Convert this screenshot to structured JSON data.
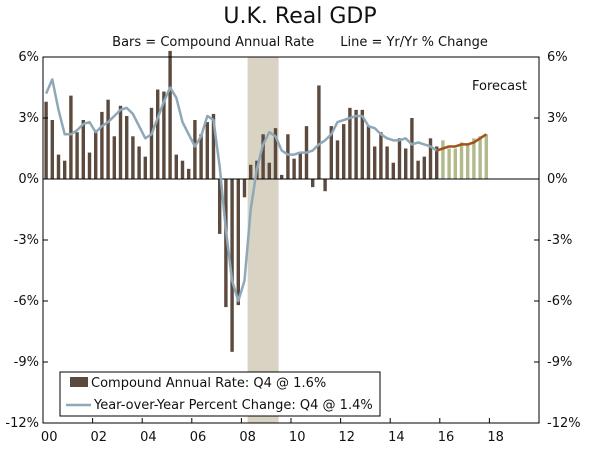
{
  "chart_data": {
    "type": "bar+line",
    "title": "U.K. Real GDP",
    "subtitle_bars": "Bars = Compound Annual Rate",
    "subtitle_line": "Line = Yr/Yr % Change",
    "annotation": "Forecast",
    "y_ticks": [
      "6%",
      "3%",
      "0%",
      "-3%",
      "-6%",
      "-9%",
      "-12%"
    ],
    "y_tick_values": [
      6,
      3,
      0,
      -3,
      -6,
      -9,
      -12
    ],
    "ylim": [
      -12,
      6
    ],
    "x_ticks": [
      "00",
      "02",
      "04",
      "06",
      "08",
      "10",
      "12",
      "14",
      "16",
      "18"
    ],
    "x_tick_years": [
      2000,
      2002,
      2004,
      2006,
      2008,
      2010,
      2012,
      2014,
      2016,
      2018
    ],
    "xlim": [
      2000,
      2020
    ],
    "recession": [
      2008.25,
      2009.5
    ],
    "legend": {
      "bars": "Compound Annual Rate: Q4 @ 1.6%",
      "line": "Year-over-Year Percent Change: Q4 @ 1.4%",
      "position": "bottom-left"
    },
    "colors": {
      "bar": "#5b4a3d",
      "bar_forecast": "#b2b98a",
      "line": "#8fa8b8",
      "line_forecast": "#a0521a",
      "recession": "#d8d3c3",
      "axis": "#000000"
    },
    "bars_actual": [
      3.8,
      2.9,
      1.2,
      0.9,
      4.1,
      2.3,
      2.9,
      1.3,
      2.3,
      3.3,
      3.9,
      2.1,
      3.6,
      3.1,
      2.1,
      1.6,
      1.1,
      3.5,
      4.4,
      4.3,
      6.3,
      1.2,
      0.9,
      0.5,
      2.9,
      2.2,
      2.8,
      3.2,
      -2.7,
      -6.3,
      -8.5,
      -6.2,
      -0.9,
      0.7,
      0.9,
      2.2,
      0.8,
      2.5,
      0.2,
      2.2,
      1.0,
      1.3,
      2.6,
      -0.4,
      4.6,
      -0.6,
      2.6,
      1.9,
      2.7,
      3.5,
      3.4,
      3.4,
      2.6,
      1.6,
      2.3,
      1.6,
      0.8,
      2.0,
      1.5,
      3.0,
      0.9,
      1.1,
      2.0,
      1.6
    ],
    "bars_forecast": [
      1.9,
      1.5,
      1.5,
      1.8,
      1.7,
      2.0,
      2.1,
      2.2
    ],
    "line_actual": [
      4.2,
      4.9,
      3.4,
      2.2,
      2.2,
      2.4,
      2.7,
      2.8,
      2.3,
      2.6,
      2.8,
      3.1,
      3.4,
      3.5,
      3.2,
      2.6,
      2.0,
      2.2,
      3.0,
      3.8,
      4.5,
      4.0,
      2.8,
      2.2,
      1.6,
      2.1,
      3.1,
      2.9,
      0.6,
      -2.5,
      -5.0,
      -6.0,
      -5.0,
      -1.5,
      0.5,
      1.7,
      2.3,
      2.1,
      1.4,
      1.2,
      1.2,
      1.3,
      1.3,
      1.4,
      1.7,
      1.9,
      2.2,
      2.8,
      2.9,
      3.0,
      3.1,
      3.1,
      2.6,
      2.5,
      2.2,
      2.0,
      1.9,
      1.9,
      2.0,
      1.7,
      1.8,
      1.7,
      1.6,
      1.4
    ],
    "line_forecast": [
      1.4,
      1.5,
      1.6,
      1.6,
      1.7,
      1.7,
      1.8,
      2.0,
      2.2
    ],
    "actual_start": 2000.0,
    "quarter_step": 0.25
  }
}
